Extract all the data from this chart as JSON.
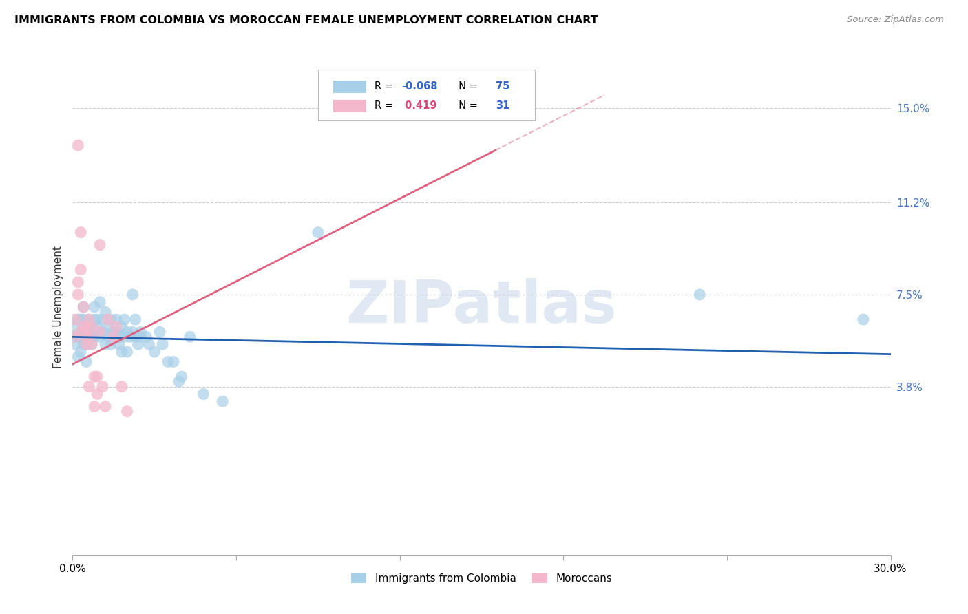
{
  "title": "IMMIGRANTS FROM COLOMBIA VS MOROCCAN FEMALE UNEMPLOYMENT CORRELATION CHART",
  "source": "Source: ZipAtlas.com",
  "ylabel": "Female Unemployment",
  "y_ticks": [
    0.038,
    0.075,
    0.112,
    0.15
  ],
  "y_tick_labels": [
    "3.8%",
    "7.5%",
    "11.2%",
    "15.0%"
  ],
  "xmin": 0.0,
  "xmax": 0.3,
  "ymin": -0.03,
  "ymax": 0.17,
  "blue_R": "-0.068",
  "blue_N": "75",
  "pink_R": " 0.419",
  "pink_N": "31",
  "blue_color": "#a8cfe8",
  "pink_color": "#f4b8cc",
  "blue_trend_color": "#2060b0",
  "pink_trend_color": "#e06080",
  "watermark_color": "#c8d8ea",
  "watermark": "ZIPatlas",
  "legend_label_blue": "Immigrants from Colombia",
  "legend_label_pink": "Moroccans",
  "blue_points_x": [
    0.001,
    0.001,
    0.001,
    0.002,
    0.002,
    0.002,
    0.003,
    0.003,
    0.003,
    0.003,
    0.004,
    0.004,
    0.004,
    0.004,
    0.005,
    0.005,
    0.005,
    0.005,
    0.006,
    0.006,
    0.006,
    0.007,
    0.007,
    0.007,
    0.008,
    0.008,
    0.008,
    0.009,
    0.009,
    0.01,
    0.01,
    0.01,
    0.011,
    0.011,
    0.012,
    0.012,
    0.013,
    0.013,
    0.014,
    0.014,
    0.015,
    0.015,
    0.016,
    0.016,
    0.017,
    0.017,
    0.018,
    0.018,
    0.019,
    0.019,
    0.02,
    0.02,
    0.021,
    0.022,
    0.022,
    0.023,
    0.023,
    0.024,
    0.025,
    0.025,
    0.027,
    0.028,
    0.03,
    0.032,
    0.033,
    0.035,
    0.037,
    0.039,
    0.04,
    0.043,
    0.048,
    0.055,
    0.09,
    0.23,
    0.29
  ],
  "blue_points_y": [
    0.062,
    0.055,
    0.058,
    0.05,
    0.065,
    0.058,
    0.052,
    0.06,
    0.058,
    0.065,
    0.058,
    0.065,
    0.055,
    0.07,
    0.055,
    0.062,
    0.048,
    0.058,
    0.06,
    0.058,
    0.065,
    0.055,
    0.062,
    0.058,
    0.07,
    0.058,
    0.065,
    0.065,
    0.062,
    0.06,
    0.058,
    0.072,
    0.065,
    0.06,
    0.055,
    0.068,
    0.058,
    0.062,
    0.065,
    0.055,
    0.06,
    0.058,
    0.065,
    0.06,
    0.055,
    0.058,
    0.062,
    0.052,
    0.058,
    0.065,
    0.06,
    0.052,
    0.058,
    0.06,
    0.075,
    0.065,
    0.058,
    0.055,
    0.06,
    0.058,
    0.058,
    0.055,
    0.052,
    0.06,
    0.055,
    0.048,
    0.048,
    0.04,
    0.042,
    0.058,
    0.035,
    0.032,
    0.1,
    0.075,
    0.065
  ],
  "pink_points_x": [
    0.001,
    0.001,
    0.002,
    0.002,
    0.002,
    0.003,
    0.003,
    0.003,
    0.004,
    0.004,
    0.005,
    0.005,
    0.005,
    0.006,
    0.006,
    0.006,
    0.007,
    0.007,
    0.008,
    0.008,
    0.009,
    0.009,
    0.01,
    0.01,
    0.011,
    0.012,
    0.013,
    0.015,
    0.016,
    0.018,
    0.02
  ],
  "pink_points_y": [
    0.065,
    0.058,
    0.135,
    0.075,
    0.08,
    0.06,
    0.1,
    0.085,
    0.07,
    0.062,
    0.055,
    0.058,
    0.062,
    0.058,
    0.065,
    0.038,
    0.055,
    0.062,
    0.03,
    0.042,
    0.035,
    0.042,
    0.095,
    0.06,
    0.038,
    0.03,
    0.065,
    0.058,
    0.062,
    0.038,
    0.028
  ],
  "blue_trend_x0": 0.0,
  "blue_trend_x1": 0.3,
  "blue_trend_y0": 0.058,
  "blue_trend_y1": 0.051,
  "pink_trend_x0": 0.0,
  "pink_trend_x1": 0.155,
  "pink_trend_y0": 0.047,
  "pink_trend_y1": 0.133
}
